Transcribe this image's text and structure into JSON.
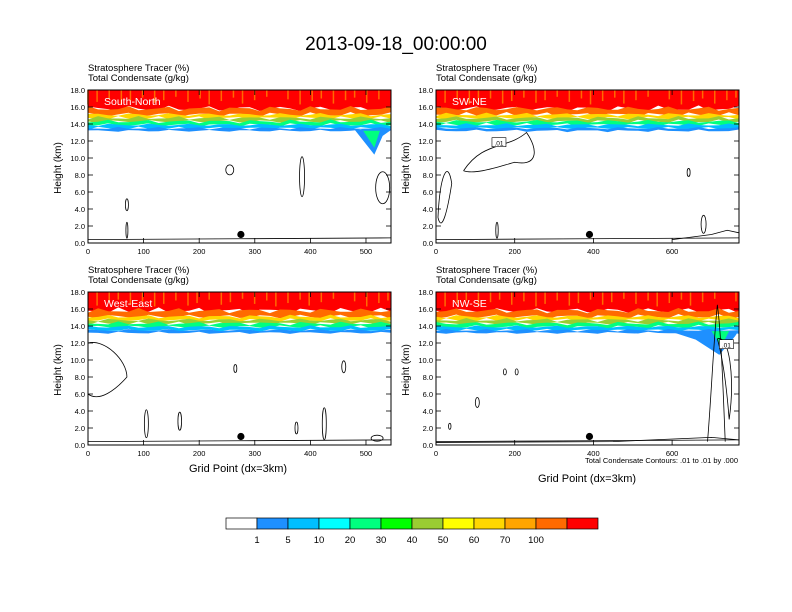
{
  "chart_data": {
    "type": "contour-panels",
    "title": "2013-09-18_00:00:00",
    "shaded_field_label": "Stratosphere Tracer   (%)",
    "contour_field_label": "Total Condensate   (g/kg)",
    "ylabel": "Height (km)",
    "xlabel": "Grid Point (dx=3km)",
    "contour_note": "Total Condensate Contours: .01 to .01 by .000",
    "contour_marker_label": ".01",
    "y_ticks": [
      "0.0",
      "2.0",
      "4.0",
      "6.0",
      "8.0",
      "10.0",
      "12.0",
      "14.0",
      "16.0",
      "18.0"
    ],
    "ylim": [
      0,
      18
    ],
    "panels": [
      {
        "name": "South-North",
        "xlim": [
          0,
          545
        ],
        "x_ticks": [
          0,
          100,
          200,
          300,
          400,
          500
        ],
        "marker_x": 275
      },
      {
        "name": "SW-NE",
        "xlim": [
          0,
          770
        ],
        "x_ticks": [
          0,
          200,
          400,
          600
        ],
        "marker_x": 390
      },
      {
        "name": "West-East",
        "xlim": [
          0,
          545
        ],
        "x_ticks": [
          0,
          100,
          200,
          300,
          400,
          500
        ],
        "marker_x": 275
      },
      {
        "name": "NW-SE",
        "xlim": [
          0,
          770
        ],
        "x_ticks": [
          0,
          200,
          400,
          600
        ],
        "marker_x": 390
      }
    ],
    "colorbar": {
      "labels": [
        "1",
        "5",
        "10",
        "20",
        "30",
        "40",
        "50",
        "60",
        "70",
        "100"
      ],
      "colors": [
        "#ffffff",
        "#1e90ff",
        "#00bfff",
        "#00ffff",
        "#00ff7f",
        "#00ff00",
        "#9acd32",
        "#ffff00",
        "#ffd700",
        "#ffa500",
        "#ff6a00",
        "#ff0000"
      ]
    }
  }
}
